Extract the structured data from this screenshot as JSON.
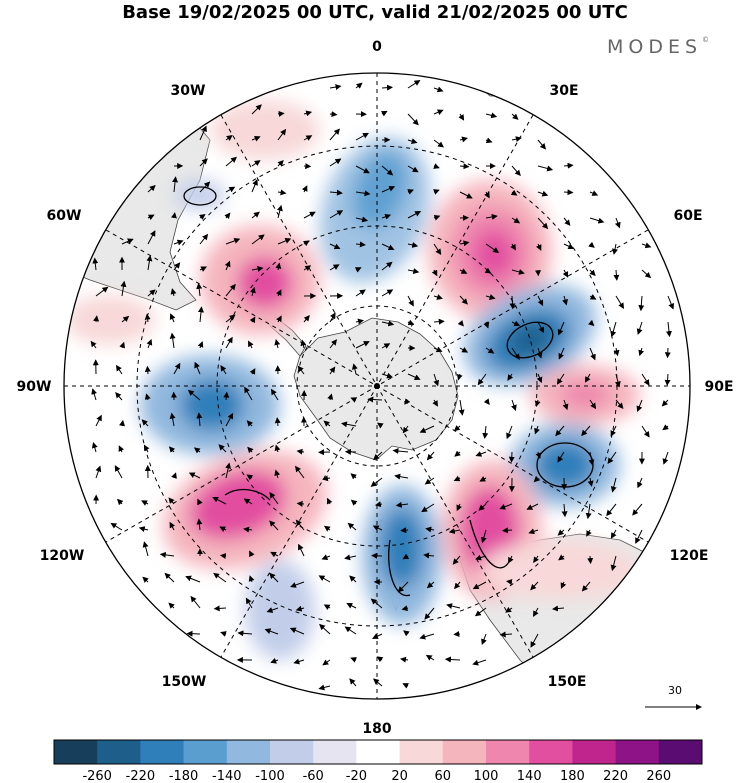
{
  "title": "Base 19/02/2025 00 UTC, valid 21/02/2025 00 UTC",
  "brand": {
    "name": "MODES",
    "mark": "©"
  },
  "longitude_labels": {
    "n": "0",
    "s": "180",
    "e": "90E",
    "w": "90W",
    "ne30": "30E",
    "ne60": "60E",
    "se120": "120E",
    "se150": "150E",
    "nw30": "30W",
    "nw60": "60W",
    "sw120": "120W",
    "sw150": "150W"
  },
  "reference_vector": "30",
  "colorbar": {
    "ticks": [
      "-260",
      "-220",
      "-180",
      "-140",
      "-100",
      "-60",
      "-20",
      "20",
      "60",
      "100",
      "140",
      "180",
      "220",
      "260"
    ],
    "colors": [
      "#173f5b",
      "#1d5e8b",
      "#2f7fba",
      "#5a9ed0",
      "#91b8de",
      "#c2cee9",
      "#e6e4f1",
      "#ffffff",
      "#f8d8d8",
      "#f5b5bd",
      "#ee86ae",
      "#e24ea0",
      "#c0258e",
      "#8d1386",
      "#5a0c72"
    ]
  },
  "map": {
    "projection": "south polar stereographic",
    "land_color": "#e9e9e9",
    "field": "height anomaly with wind vectors"
  }
}
